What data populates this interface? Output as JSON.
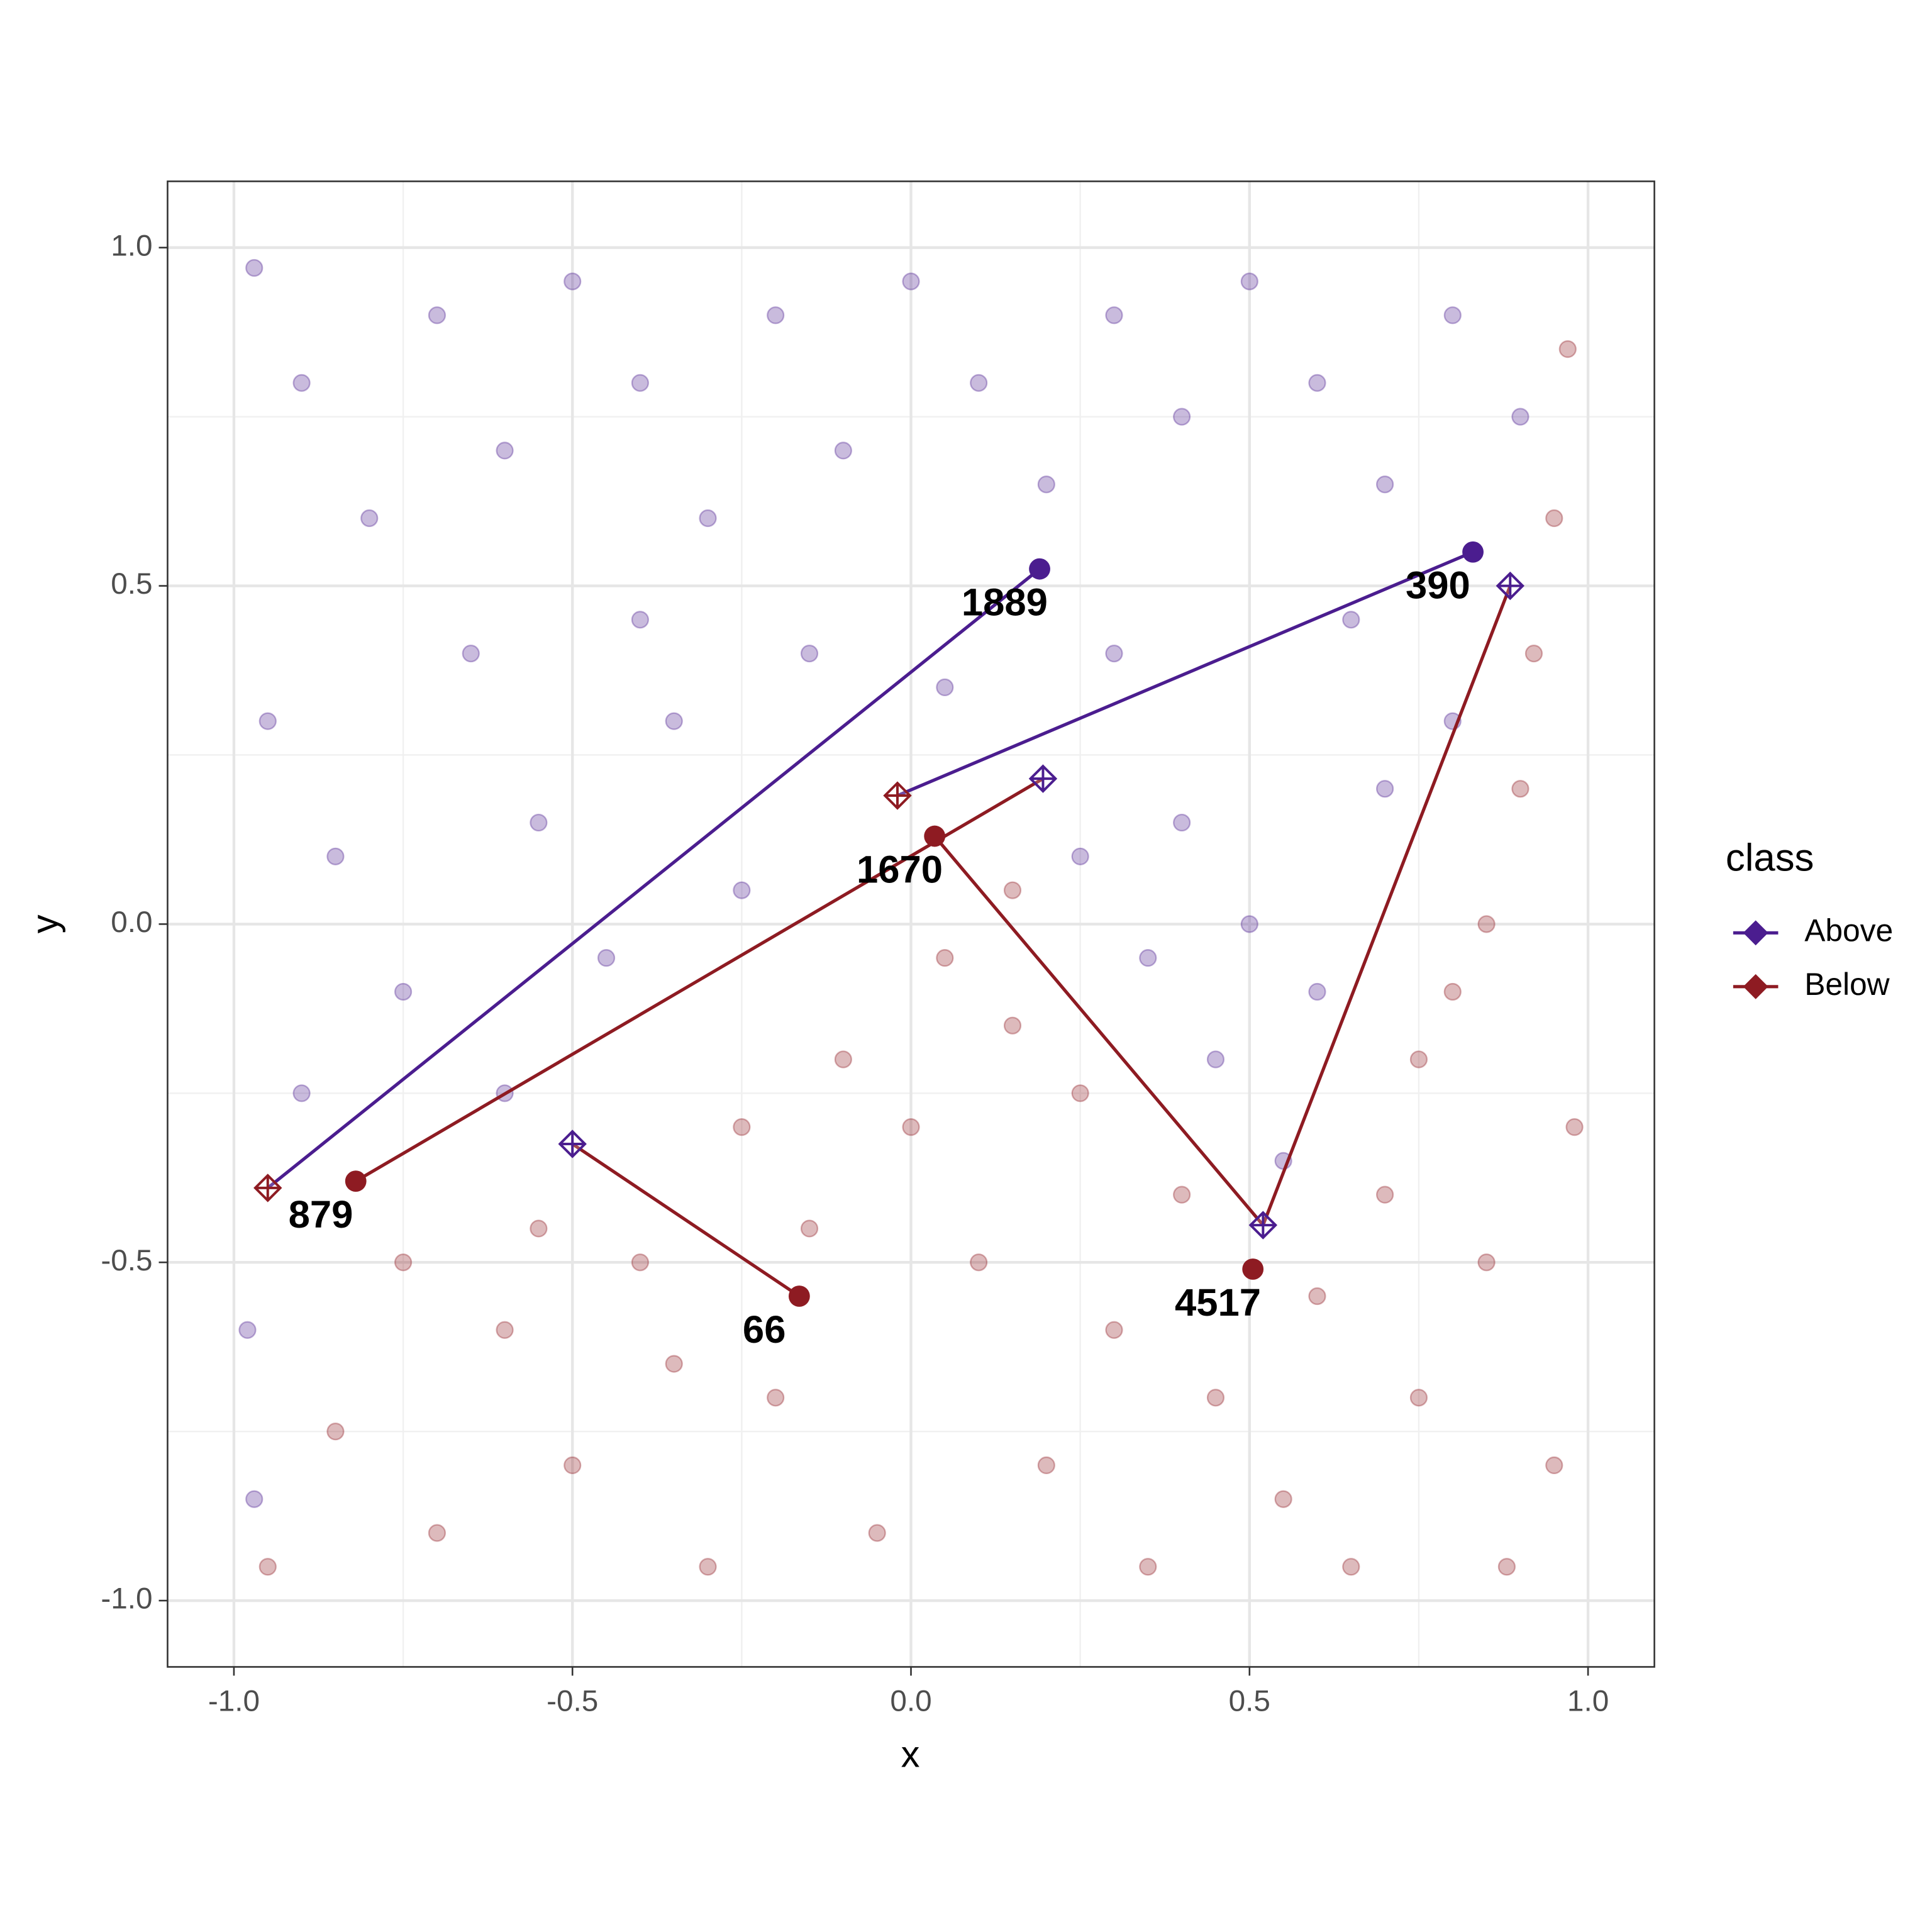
{
  "chart_data": {
    "type": "scatter",
    "xlabel": "x",
    "ylabel": "y",
    "xlim": [
      -1.098,
      1.098
    ],
    "ylim": [
      -1.098,
      1.098
    ],
    "xticks": [
      {
        "value": -1,
        "label": "-1.0"
      },
      {
        "value": -0.5,
        "label": "-0.5"
      },
      {
        "value": 0,
        "label": "0.0"
      },
      {
        "value": 0.5,
        "label": "0.5"
      },
      {
        "value": 1,
        "label": "1.0"
      }
    ],
    "yticks": [
      {
        "value": -1,
        "label": "-1.0"
      },
      {
        "value": -0.5,
        "label": "-0.5"
      },
      {
        "value": 0,
        "label": "0.0"
      },
      {
        "value": 0.5,
        "label": "0.5"
      },
      {
        "value": 1,
        "label": "1.0"
      }
    ],
    "minor_xticks": [
      -0.75,
      -0.25,
      0.25,
      0.75
    ],
    "minor_yticks": [
      -0.75,
      -0.25,
      0.25,
      0.75
    ],
    "grid": true,
    "legend": {
      "title": "class",
      "position": "right"
    },
    "series": [
      {
        "name": "Above",
        "color": "#4b1d8f",
        "x": [
          -0.97,
          -0.9,
          -0.8,
          -0.7,
          -0.6,
          -0.5,
          -0.4,
          -0.3,
          -0.2,
          -0.1,
          0,
          0.1,
          0.2,
          0.3,
          0.4,
          0.5,
          0.6,
          0.7,
          0.8,
          0.9,
          -0.95,
          -0.85,
          -0.75,
          -0.9,
          -0.65,
          -0.55,
          -0.45,
          -0.35,
          -0.25,
          -0.15,
          0.05,
          0.3,
          0.4,
          0.5,
          0.45,
          0.6,
          0.7,
          0.8,
          0.55,
          -0.6,
          -0.98,
          -0.97,
          0.35,
          0.25,
          0.65,
          -0.4
        ],
        "y": [
          0.97,
          0.8,
          0.6,
          0.9,
          0.7,
          0.95,
          0.8,
          0.6,
          0.9,
          0.7,
          0.95,
          0.8,
          0.65,
          0.9,
          0.75,
          0.95,
          0.8,
          0.65,
          0.9,
          0.75,
          0.3,
          0.1,
          -0.1,
          -0.25,
          0.4,
          0.15,
          -0.05,
          0.3,
          0.05,
          0.4,
          0.35,
          0.4,
          0.15,
          0,
          -0.2,
          -0.1,
          0.2,
          0.3,
          -0.35,
          -0.25,
          -0.6,
          -0.85,
          -0.05,
          0.1,
          0.45,
          0.45
        ]
      },
      {
        "name": "Below",
        "color": "#8e1b22",
        "x": [
          -0.95,
          -0.85,
          -0.75,
          -0.7,
          -0.6,
          -0.5,
          -0.4,
          -0.3,
          -0.25,
          -0.2,
          -0.1,
          -0.05,
          0.05,
          0.1,
          0.15,
          0.2,
          0.25,
          0.3,
          0.35,
          0.4,
          0.45,
          0.55,
          0.6,
          0.65,
          0.7,
          0.75,
          0.8,
          0.85,
          0.9,
          0.95,
          0.95,
          0.97,
          0.85,
          0.75,
          0.92,
          -0.15,
          0,
          -0.35,
          -0.55,
          0.15,
          0.98,
          0.88
        ],
        "y": [
          -0.95,
          -0.75,
          -0.5,
          -0.9,
          -0.6,
          -0.8,
          -0.5,
          -0.95,
          -0.3,
          -0.7,
          -0.2,
          -0.9,
          -0.05,
          -0.5,
          0.05,
          -0.8,
          -0.25,
          -0.6,
          -0.95,
          -0.4,
          -0.7,
          -0.85,
          -0.55,
          -0.95,
          -0.4,
          -0.7,
          -0.1,
          -0.5,
          0.2,
          -0.8,
          0.6,
          0.85,
          0,
          -0.2,
          0.4,
          -0.45,
          -0.3,
          -0.65,
          -0.45,
          -0.15,
          -0.3,
          -0.95
        ]
      }
    ],
    "links": [
      {
        "series": 0,
        "x": [
          0.19,
          -0.95
        ],
        "y": [
          0.525,
          -0.39
        ]
      },
      {
        "series": 0,
        "x": [
          0.83,
          -0.02
        ],
        "y": [
          0.55,
          0.19
        ]
      },
      {
        "series": 1,
        "x": [
          -0.82,
          0.195
        ],
        "y": [
          -0.38,
          0.215
        ]
      },
      {
        "series": 1,
        "x": [
          0.035,
          0.52
        ],
        "y": [
          0.13,
          -0.445
        ]
      },
      {
        "series": 1,
        "x": [
          -0.165,
          -0.5
        ],
        "y": [
          -0.55,
          -0.325
        ]
      },
      {
        "series": 1,
        "x": [
          0.52,
          0.885
        ],
        "y": [
          -0.445,
          0.5
        ]
      }
    ],
    "anchors": [
      {
        "series": 1,
        "x": -0.95,
        "y": -0.39
      },
      {
        "series": 1,
        "x": -0.02,
        "y": 0.19
      },
      {
        "series": 0,
        "x": 0.195,
        "y": 0.215
      },
      {
        "series": 0,
        "x": -0.5,
        "y": -0.325
      },
      {
        "series": 0,
        "x": 0.52,
        "y": -0.445
      },
      {
        "series": 0,
        "x": 0.885,
        "y": 0.5
      }
    ],
    "labeled_points": [
      {
        "label": "1889",
        "series": 0,
        "x": 0.19,
        "y": 0.525
      },
      {
        "label": "390",
        "series": 0,
        "x": 0.83,
        "y": 0.55
      },
      {
        "label": "1670",
        "series": 1,
        "x": 0.035,
        "y": 0.13
      },
      {
        "label": "879",
        "series": 1,
        "x": -0.82,
        "y": -0.38
      },
      {
        "label": "66",
        "series": 1,
        "x": -0.165,
        "y": -0.55
      },
      {
        "label": "4517",
        "series": 1,
        "x": 0.505,
        "y": -0.51
      }
    ]
  }
}
